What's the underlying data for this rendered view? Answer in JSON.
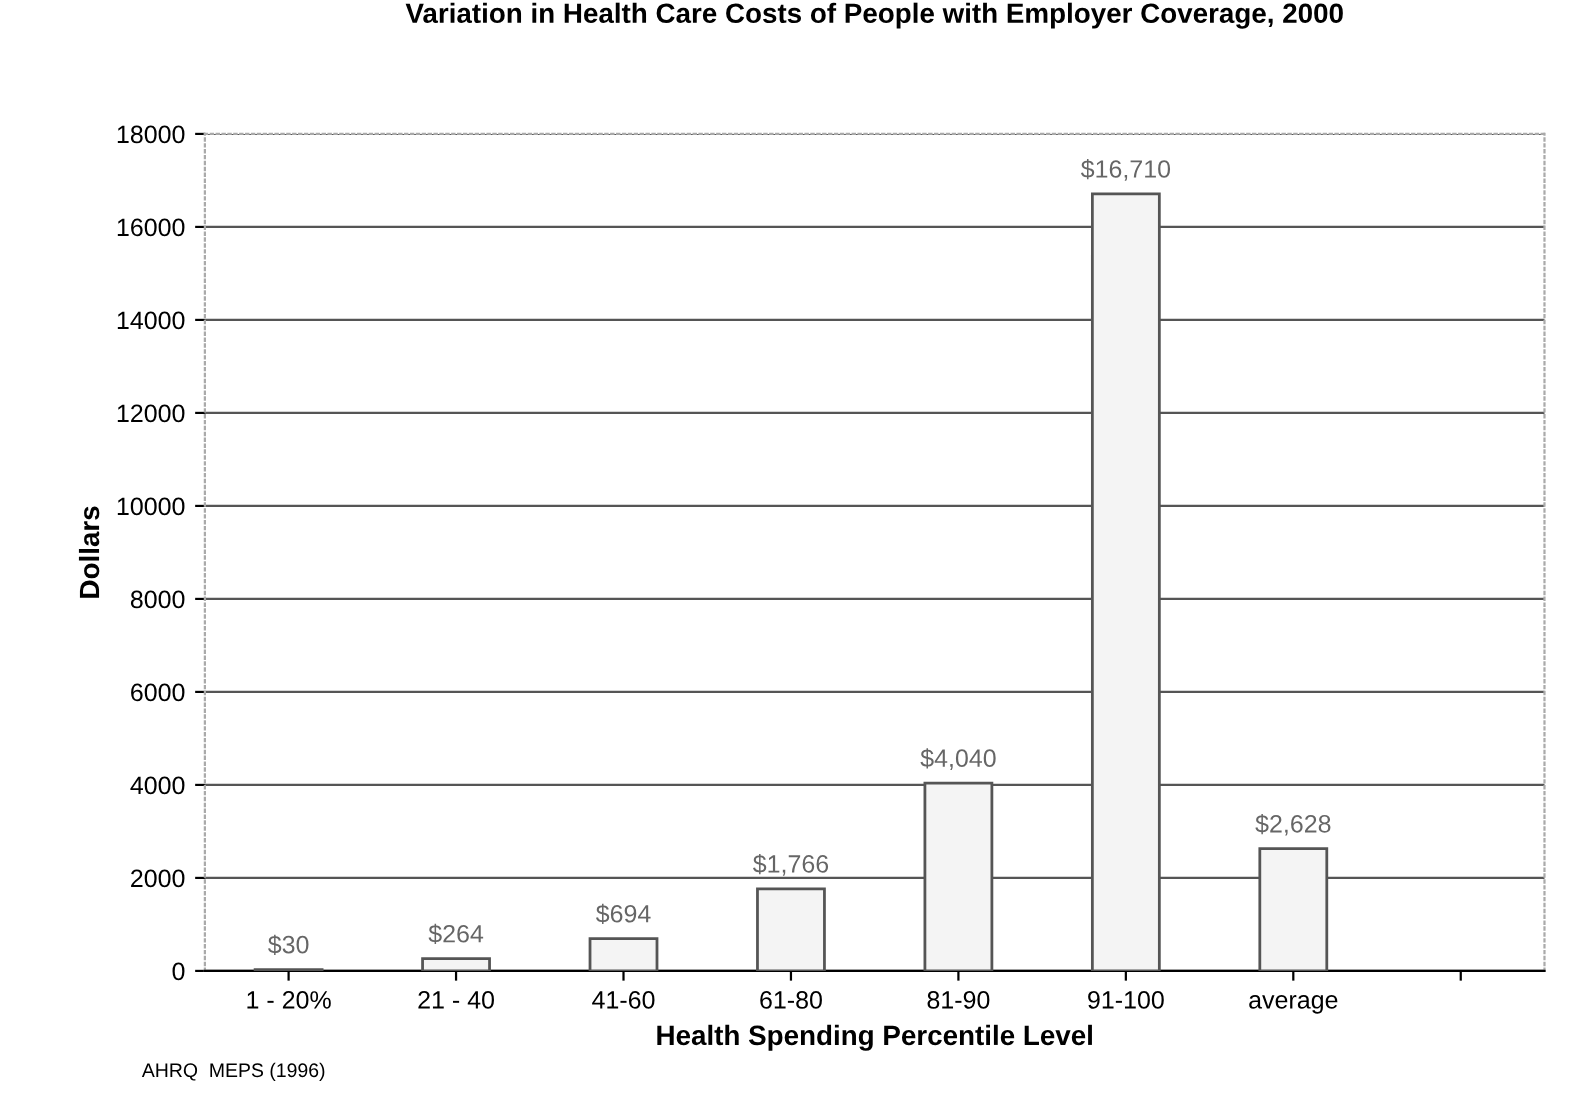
{
  "chart_data": {
    "type": "bar",
    "title": "Variation in Health Care Costs of People with Employer Coverage, 2000",
    "xlabel": "Health Spending Percentile Level",
    "ylabel": "Dollars",
    "categories": [
      "1 - 20%",
      "21 - 40",
      "41-60",
      "61-80",
      "81-90",
      "91-100",
      "average",
      null
    ],
    "values": [
      30,
      264,
      694,
      1766,
      4040,
      16710,
      2628,
      null
    ],
    "value_labels": [
      "$30",
      "$264",
      "$694",
      "$1,766",
      "$4,040",
      "$16,710",
      "$2,628",
      null
    ],
    "color": "#f4f4f4",
    "ylim": [
      0,
      18000
    ],
    "yticks": [
      0,
      2000,
      4000,
      6000,
      8000,
      10000,
      12000,
      14000,
      16000,
      18000
    ],
    "grid": "y",
    "annotations": [
      "AHRQ  MEPS (1996)"
    ]
  }
}
